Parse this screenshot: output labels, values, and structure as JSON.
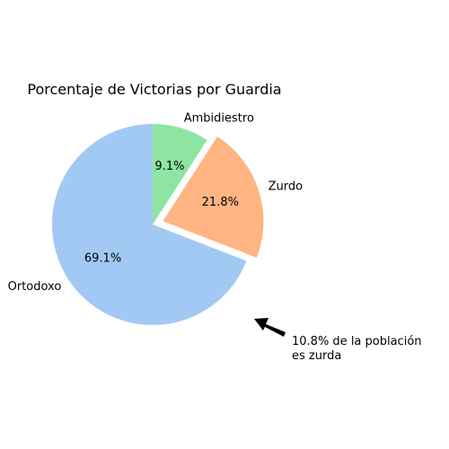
{
  "chart_data": {
    "type": "pie",
    "title": "Porcentaje de Victorias por Guardia",
    "slices": [
      {
        "label": "Ortodoxo",
        "value": 69.1,
        "pct_label": "69.1%",
        "color": "#a1c9f4",
        "explode": 0
      },
      {
        "label": "Zurdo",
        "value": 21.8,
        "pct_label": "21.8%",
        "color": "#ffb482",
        "explode": 1
      },
      {
        "label": "Ambidiestro",
        "value": 9.1,
        "pct_label": "9.1%",
        "color": "#8de5a1",
        "explode": 0
      }
    ],
    "start_angle": 90,
    "counterclock": true,
    "annotation": {
      "lines": [
        "10.8% de la población",
        "es zurda"
      ]
    }
  }
}
